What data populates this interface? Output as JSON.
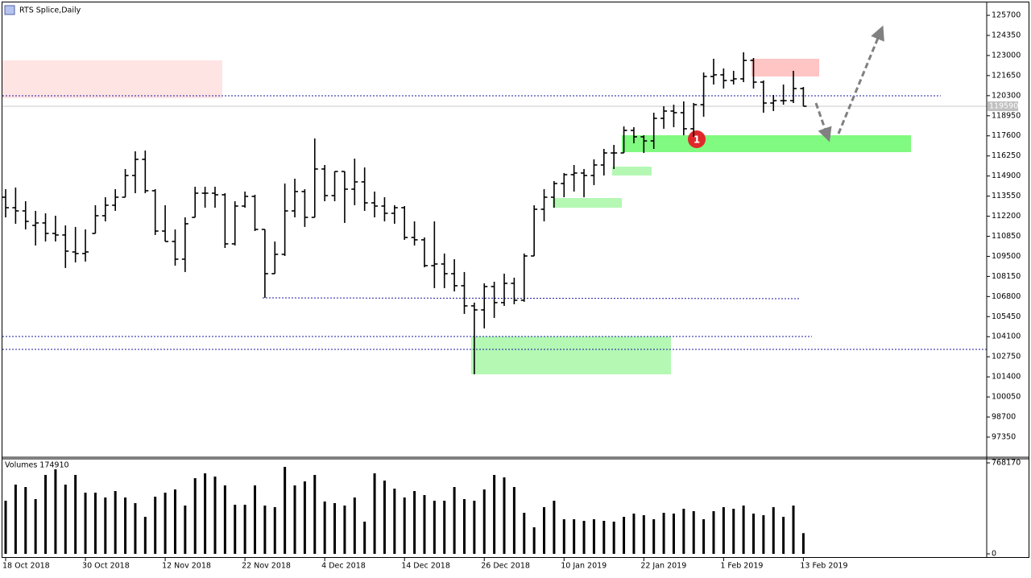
{
  "chart_data": {
    "type": "ohlc",
    "title": "RTS Splice,Daily",
    "marker": "1",
    "last_price": 119590,
    "categories": [
      "18 Oct 2018",
      null,
      null,
      null,
      null,
      null,
      null,
      null,
      "30 Oct 2018",
      null,
      null,
      null,
      null,
      null,
      null,
      null,
      "12 Nov 2018",
      null,
      null,
      null,
      null,
      null,
      null,
      null,
      "22 Nov 2018",
      null,
      null,
      null,
      null,
      null,
      null,
      null,
      "4 Dec 2018",
      null,
      null,
      null,
      null,
      null,
      null,
      null,
      "14 Dec 2018",
      null,
      null,
      null,
      null,
      null,
      null,
      null,
      "26 Dec 2018",
      null,
      null,
      null,
      null,
      null,
      null,
      null,
      "10 Jan 2019",
      null,
      null,
      null,
      null,
      null,
      null,
      null,
      "22 Jan 2019",
      null,
      null,
      null,
      null,
      null,
      null,
      null,
      "1 Feb 2019",
      null,
      null,
      null,
      null,
      null,
      null,
      null,
      "13 Feb 2019"
    ],
    "open": [
      113475,
      112770,
      112555,
      111580,
      111745,
      111040,
      110935,
      109795,
      109690,
      111040,
      112230,
      112935,
      113475,
      114935,
      116020,
      113910,
      111200,
      110500,
      109310,
      112120,
      113745,
      113745,
      113640,
      110340,
      112880,
      113530,
      111310,
      108335,
      109635,
      112555,
      113855,
      112120,
      115370,
      113585,
      115205,
      114015,
      114505,
      113095,
      112880,
      112395,
      112770,
      110770,
      110610,
      108875,
      108985,
      108335,
      107525,
      106170,
      105900,
      107470,
      106390,
      107685,
      106550,
      109525,
      112665,
      113475,
      114395,
      114990,
      115100,
      114935,
      115640,
      116450,
      116450,
      117965,
      117535,
      117260,
      118775,
      119265,
      119155,
      118075,
      119695,
      121590,
      121700,
      121320,
      121430,
      122670,
      121210,
      119805,
      119965,
      119965,
      120780
    ],
    "high": [
      114015,
      114125,
      113205,
      112555,
      112395,
      112230,
      111580,
      111475,
      111310,
      112935,
      113475,
      114015,
      115370,
      116560,
      116615,
      114015,
      112935,
      111310,
      112120,
      114180,
      114180,
      114180,
      113745,
      113205,
      113855,
      113640,
      111310,
      110500,
      114395,
      114720,
      114015,
      117425,
      115640,
      115205,
      115205,
      116070,
      115475,
      113855,
      113475,
      112935,
      112880,
      111850,
      110770,
      111850,
      109690,
      109310,
      108445,
      106390,
      107685,
      107795,
      108335,
      108065,
      109690,
      112935,
      114015,
      114555,
      115100,
      115640,
      115370,
      116020,
      116720,
      116990,
      118235,
      118180,
      117640,
      119155,
      119590,
      119695,
      119915,
      119805,
      121860,
      122780,
      122130,
      121970,
      123215,
      122835,
      121320,
      120345,
      121050,
      121970,
      120885
    ],
    "low": [
      112120,
      111690,
      111310,
      110230,
      110500,
      110500,
      108715,
      109095,
      109150,
      111040,
      111850,
      112555,
      113475,
      113745,
      113745,
      110935,
      110500,
      108875,
      108445,
      112120,
      112770,
      112770,
      110065,
      110230,
      112770,
      111200,
      106715,
      108335,
      109525,
      112120,
      111475,
      112120,
      113205,
      113205,
      111745,
      112935,
      112555,
      112120,
      111850,
      111690,
      110610,
      110230,
      108770,
      107360,
      107360,
      107145,
      105630,
      101575,
      104655,
      105360,
      106170,
      106280,
      106445,
      109525,
      111850,
      112770,
      113475,
      113855,
      113475,
      114285,
      114935,
      115370,
      116450,
      117100,
      116450,
      116720,
      118075,
      118180,
      117640,
      117535,
      118885,
      121050,
      120780,
      121050,
      121210,
      120780,
      119155,
      119265,
      119695,
      119805,
      119590
    ],
    "close": [
      112770,
      112555,
      111850,
      111745,
      111040,
      110935,
      109850,
      109690,
      109795,
      112230,
      112935,
      113475,
      114935,
      116020,
      113910,
      111200,
      110500,
      109310,
      111690,
      113745,
      113745,
      113640,
      110340,
      112880,
      113530,
      111310,
      108335,
      109635,
      112555,
      113855,
      112120,
      115370,
      113585,
      115205,
      114015,
      114505,
      113095,
      112880,
      112395,
      112770,
      110770,
      110610,
      108875,
      108985,
      108335,
      107525,
      106170,
      105900,
      107470,
      106390,
      107685,
      106550,
      109525,
      112665,
      113475,
      114395,
      114990,
      115100,
      114935,
      115640,
      116450,
      116450,
      117965,
      117535,
      117260,
      118775,
      119265,
      119155,
      118075,
      119695,
      121590,
      121700,
      121320,
      121430,
      122670,
      121210,
      119805,
      119965,
      119965,
      120780,
      119590
    ],
    "color": "#000000",
    "ylim": [
      96050,
      126460
    ],
    "yticks": [
      97350,
      98700,
      100050,
      101400,
      102750,
      104100,
      105450,
      106800,
      108150,
      109500,
      110850,
      112200,
      113550,
      114900,
      116250,
      117600,
      118950,
      120300,
      121650,
      123000,
      124350,
      125700
    ],
    "volume": {
      "title": "Volumes 174910",
      "color": "#000000",
      "ylim": [
        0,
        802000
      ],
      "yticks": [
        0,
        768170
      ],
      "values": [
        448670,
        584630,
        564230,
        462260,
        666200,
        713790,
        584630,
        666200,
        516650,
        516650,
        475860,
        530240,
        475860,
        428270,
        312710,
        482660,
        516650,
        543840,
        407880,
        639010,
        679800,
        652610,
        577830,
        414680,
        414680,
        577830,
        407880,
        394280,
        734180,
        577830,
        611820,
        666200,
        441870,
        428270,
        407880,
        475860,
        271920,
        679800,
        618620,
        550640,
        475860,
        530240,
        496250,
        448670,
        448670,
        564230,
        462260,
        448670,
        543840,
        666200,
        645810,
        564230,
        346700,
        224330,
        394280,
        448670,
        292310,
        292310,
        278720,
        292310,
        278720,
        271920,
        312710,
        339900,
        326300,
        292310,
        346700,
        339900,
        380690,
        360290,
        292310,
        360290,
        394280,
        380690,
        407880,
        339900,
        326300,
        394280,
        312710,
        407880,
        174910
      ]
    }
  }
}
